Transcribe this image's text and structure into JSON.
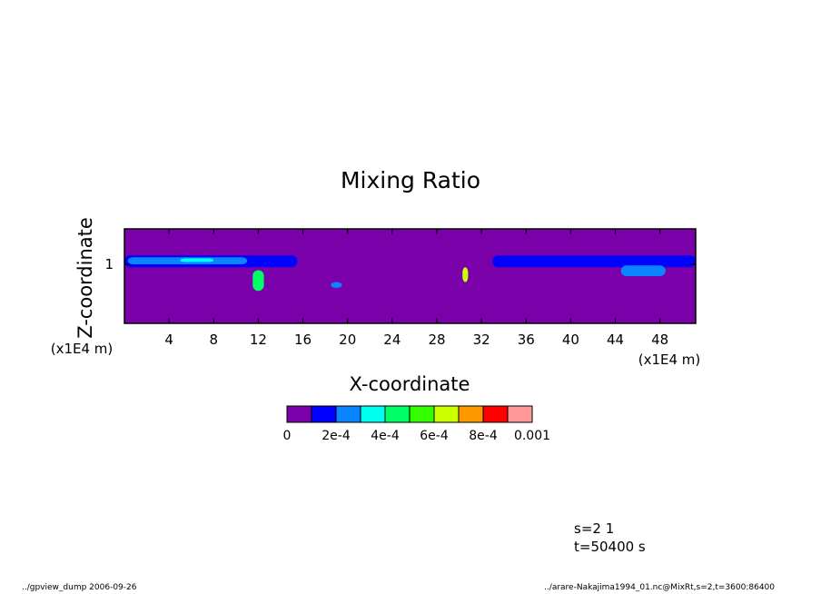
{
  "chart_data": {
    "type": "heatmap",
    "title": "Mixing Ratio",
    "xlabel": "X-coordinate",
    "ylabel": "Z-coordinate",
    "x_unit": "(x1E4 m)",
    "y_unit": "(x1E4 m)",
    "xlim": [
      0,
      51.2
    ],
    "ylim": [
      0,
      1.6
    ],
    "x_ticks": [
      4,
      8,
      12,
      16,
      20,
      24,
      28,
      32,
      36,
      40,
      44,
      48
    ],
    "y_ticks": [
      1
    ],
    "colorbar": {
      "levels": [
        0,
        0.0001,
        0.0002,
        0.0003,
        0.0004,
        0.0005,
        0.0006,
        0.0007,
        0.0008,
        0.0009,
        0.001
      ],
      "labels": [
        "0",
        "2e-4",
        "4e-4",
        "6e-4",
        "8e-4",
        "0.001"
      ],
      "colors": [
        "#7a00aa",
        "#0000ff",
        "#0a84ff",
        "#00ffee",
        "#00ff66",
        "#33ff00",
        "#ccff00",
        "#ff9900",
        "#ff0000",
        "#ff9999"
      ]
    },
    "features": [
      {
        "x": [
          0,
          15.5
        ],
        "z": [
          0.95,
          1.15
        ],
        "level": 1
      },
      {
        "x": [
          0.3,
          11
        ],
        "z": [
          1.0,
          1.12
        ],
        "level": 2
      },
      {
        "x": [
          5,
          8
        ],
        "z": [
          1.04,
          1.1
        ],
        "level": 3
      },
      {
        "x": [
          11.5,
          12.5
        ],
        "z": [
          0.55,
          0.9
        ],
        "level": 4
      },
      {
        "x": [
          30.3,
          30.8
        ],
        "z": [
          0.7,
          0.95
        ],
        "level": 6
      },
      {
        "x": [
          18.5,
          19.5
        ],
        "z": [
          0.6,
          0.7
        ],
        "level": 2
      },
      {
        "x": [
          33,
          51.2
        ],
        "z": [
          0.95,
          1.15
        ],
        "level": 1
      },
      {
        "x": [
          44.5,
          48.5
        ],
        "z": [
          0.8,
          0.98
        ],
        "level": 2
      }
    ]
  },
  "annotations": {
    "s_line": "s=2 1",
    "t_line": "t=50400 s"
  },
  "footer": {
    "left": "../gpview_dump  2006-09-26",
    "right": "../arare-Nakajima1994_01.nc@MixRt,s=2,t=3600:86400"
  }
}
